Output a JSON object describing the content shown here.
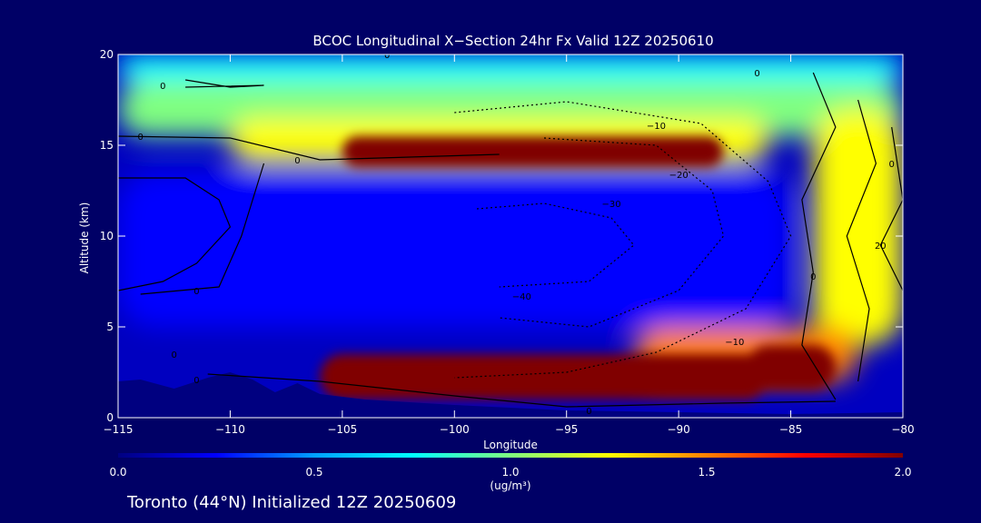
{
  "chart_data": {
    "type": "heatmap",
    "title": "BCOC Longitudinal X−Section 24hr  Fx Valid 12Z 20250610",
    "xlabel": "Longitude",
    "ylabel": "Altitude (km)",
    "xlim": [
      -115,
      -80
    ],
    "ylim": [
      0,
      20
    ],
    "x_ticks": [
      -115,
      -110,
      -105,
      -100,
      -95,
      -90,
      -85,
      -80
    ],
    "x_tick_labels": [
      "−115",
      "−110",
      "−105",
      "−100",
      "−95",
      "−90",
      "−85",
      "−80"
    ],
    "y_ticks": [
      0,
      5,
      10,
      15,
      20
    ],
    "y_tick_labels": [
      "0",
      "5",
      "10",
      "15",
      "20"
    ],
    "colorbar": {
      "min": 0.0,
      "max": 2.0,
      "ticks": [
        0.0,
        0.5,
        1.0,
        1.5,
        2.0
      ],
      "tick_labels": [
        "0.0",
        "0.5",
        "1.0",
        "1.5",
        "2.0"
      ],
      "units": "(ug/m³)",
      "colormap": [
        "#000080",
        "#0000ff",
        "#00a0ff",
        "#00ffff",
        "#80ff80",
        "#ffff00",
        "#ff8000",
        "#ff0000",
        "#800000"
      ]
    },
    "field_regions": [
      {
        "lon": [
          -115,
          -80
        ],
        "alt": [
          18.5,
          20
        ],
        "value": 0.7
      },
      {
        "lon": [
          -115,
          -80
        ],
        "alt": [
          15.5,
          18.5
        ],
        "value": 0.95
      },
      {
        "lon": [
          -110,
          -86
        ],
        "alt": [
          14,
          16.5
        ],
        "value": 1.3
      },
      {
        "lon": [
          -105,
          -88
        ],
        "alt": [
          13.8,
          15.5
        ],
        "value": 2.0
      },
      {
        "lon": [
          -115,
          -85
        ],
        "alt": [
          5,
          13.5
        ],
        "value": 0.3
      },
      {
        "lon": [
          -115,
          -100
        ],
        "alt": [
          8,
          12
        ],
        "value": 0.15
      },
      {
        "lon": [
          -84,
          -80
        ],
        "alt": [
          4,
          17
        ],
        "value": 1.2
      },
      {
        "lon": [
          -92,
          -82
        ],
        "alt": [
          2,
          5
        ],
        "value": 1.5
      },
      {
        "lon": [
          -106,
          -86
        ],
        "alt": [
          1,
          3.5
        ],
        "value": 2.0
      },
      {
        "lon": [
          -87,
          -83
        ],
        "alt": [
          1.5,
          4
        ],
        "value": 2.0
      }
    ],
    "contour_labels": [
      {
        "lon": -114,
        "alt": 15.5,
        "text": "0"
      },
      {
        "lon": -107,
        "alt": 14.2,
        "text": "0"
      },
      {
        "lon": -113,
        "alt": 18.3,
        "text": "0"
      },
      {
        "lon": -103,
        "alt": 20,
        "text": "0"
      },
      {
        "lon": -86.5,
        "alt": 19,
        "text": "0"
      },
      {
        "lon": -111.5,
        "alt": 7,
        "text": "0"
      },
      {
        "lon": -112.5,
        "alt": 3.5,
        "text": "0"
      },
      {
        "lon": -111.5,
        "alt": 2.1,
        "text": "0"
      },
      {
        "lon": -94,
        "alt": 0.4,
        "text": "0"
      },
      {
        "lon": -84,
        "alt": 7.8,
        "text": "0"
      },
      {
        "lon": -80.5,
        "alt": 14,
        "text": "0"
      },
      {
        "lon": -91,
        "alt": 16.1,
        "text": "−10"
      },
      {
        "lon": -90,
        "alt": 13.4,
        "text": "−20"
      },
      {
        "lon": -93,
        "alt": 11.8,
        "text": "−30"
      },
      {
        "lon": -97,
        "alt": 6.7,
        "text": "−40"
      },
      {
        "lon": -87.5,
        "alt": 4.2,
        "text": "−10"
      },
      {
        "lon": -81,
        "alt": 9.5,
        "text": "20"
      }
    ]
  },
  "footer": {
    "location": "Toronto (44°N) Initialized 12Z 20250609"
  }
}
